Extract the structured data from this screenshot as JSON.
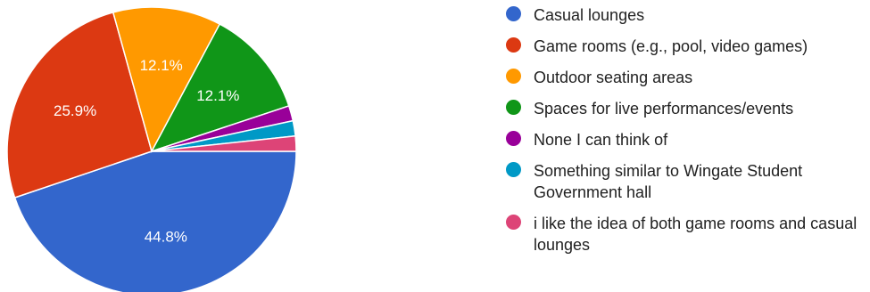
{
  "chart_data": {
    "type": "pie",
    "title": "",
    "slices": [
      {
        "label": "Casual lounges",
        "value": 44.8,
        "display": "44.8%",
        "color": "#3366cc"
      },
      {
        "label": "Game rooms (e.g., pool, video games)",
        "value": 25.9,
        "display": "25.9%",
        "color": "#dc3912"
      },
      {
        "label": "Outdoor seating areas",
        "value": 12.1,
        "display": "12.1%",
        "color": "#ff9900"
      },
      {
        "label": "Spaces for live performances/events",
        "value": 12.1,
        "display": "12.1%",
        "color": "#109618"
      },
      {
        "label": "None I can think of",
        "value": 1.7,
        "display": "",
        "color": "#990099"
      },
      {
        "label": "Something similar to Wingate Student Government hall",
        "value": 1.7,
        "display": "",
        "color": "#0099c6"
      },
      {
        "label": "i like the idea of both game rooms and casual lounges",
        "value": 1.7,
        "display": "",
        "color": "#dd4477"
      }
    ],
    "legend_position": "right"
  }
}
